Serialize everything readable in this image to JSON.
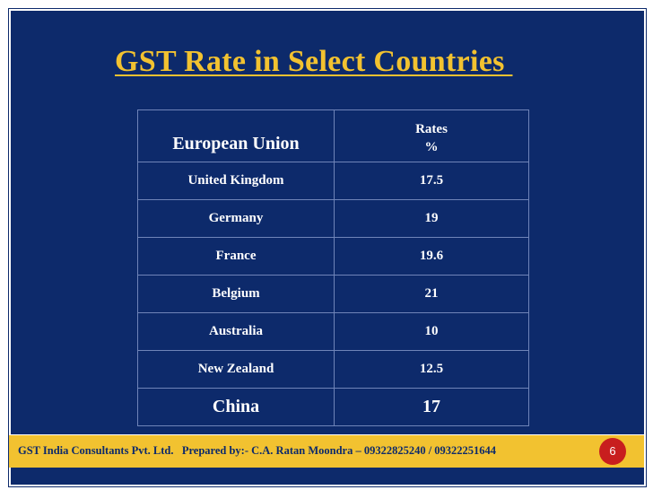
{
  "slide": {
    "title": "GST Rate in Select Countries ",
    "table": {
      "header_region": "European Union",
      "header_rates_line1": "Rates",
      "header_rates_line2": "%",
      "rows": [
        {
          "country": "United Kingdom",
          "rate": "17.5"
        },
        {
          "country": "Germany",
          "rate": "19"
        },
        {
          "country": "France",
          "rate": "19.6"
        },
        {
          "country": "Belgium",
          "rate": "21"
        },
        {
          "country": "Australia",
          "rate": "10"
        },
        {
          "country": "New Zealand",
          "rate": "12.5"
        },
        {
          "country": "China",
          "rate": "17"
        }
      ]
    },
    "footer": {
      "text": "GST India Consultants Pvt. Ltd.   Prepared by:- C.A. Ratan Moondra – 09322825240 / 09322251644",
      "page_number": "6"
    }
  },
  "colors": {
    "background": "#0d2a6b",
    "title": "#f2c230",
    "footer_bar": "#f2c230",
    "badge": "#c81e1e"
  }
}
